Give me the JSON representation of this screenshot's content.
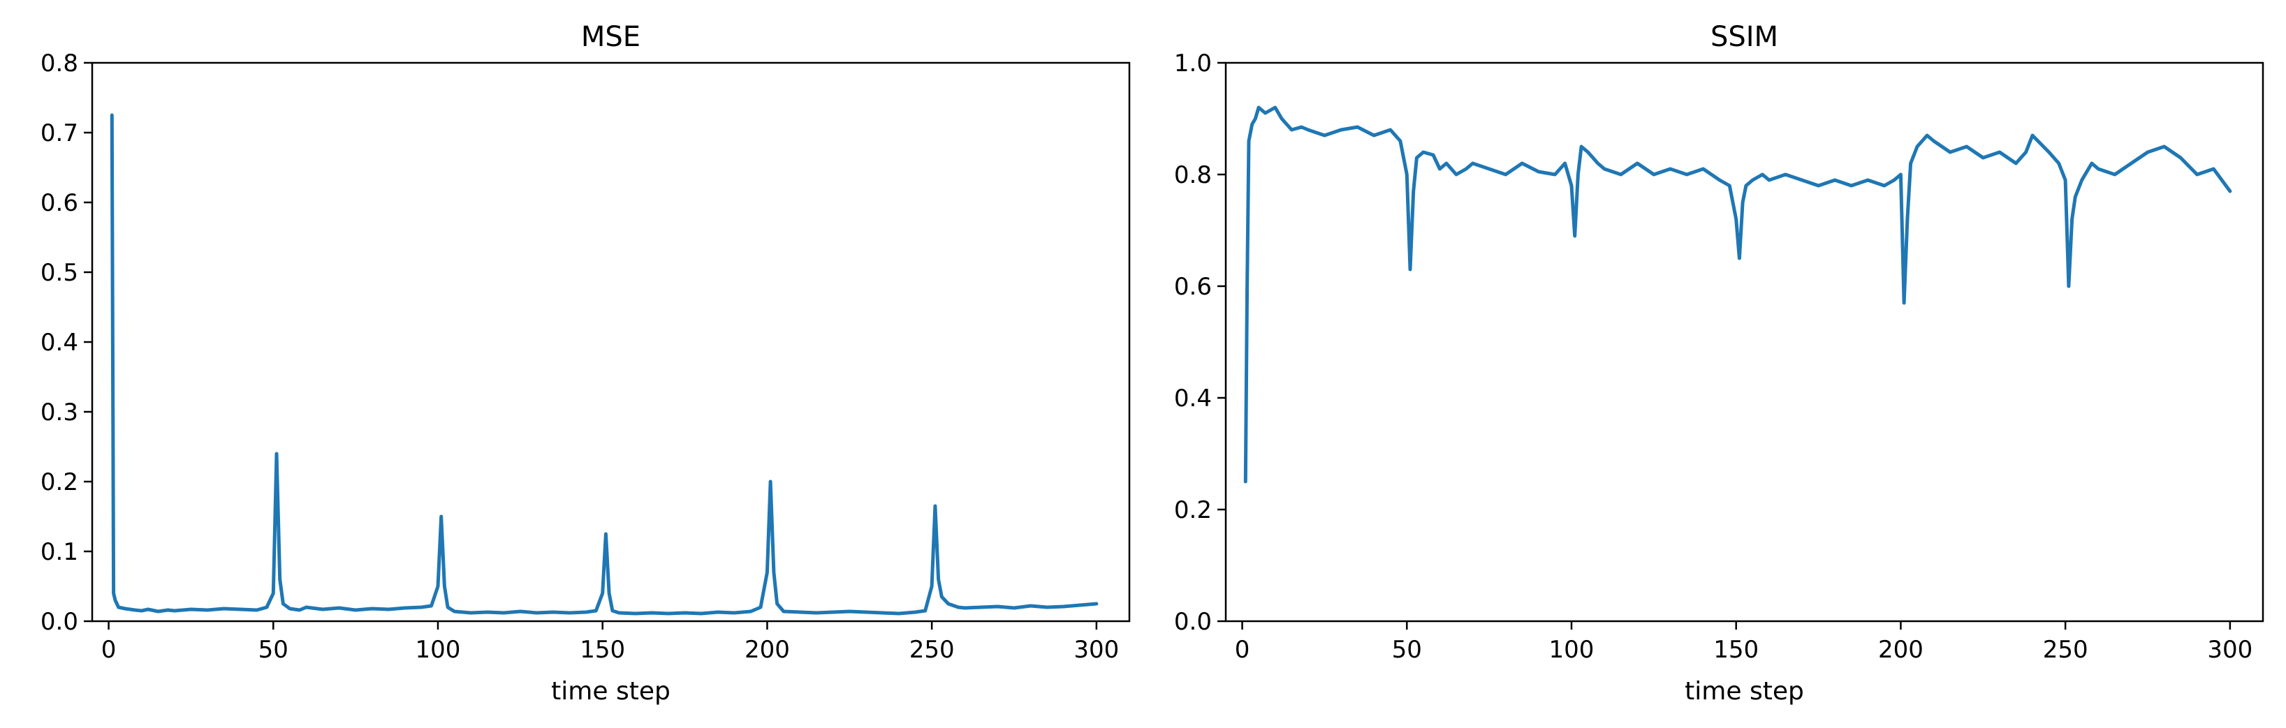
{
  "chart_data": [
    {
      "type": "line",
      "title": "MSE",
      "xlabel": "time step",
      "ylabel": "",
      "xlim": [
        -5,
        310
      ],
      "ylim": [
        0,
        0.8
      ],
      "xticks": [
        0,
        50,
        100,
        150,
        200,
        250,
        300
      ],
      "yticks": [
        0.0,
        0.1,
        0.2,
        0.3,
        0.4,
        0.5,
        0.6,
        0.7,
        0.8
      ],
      "xtick_labels": [
        "0",
        "50",
        "100",
        "150",
        "200",
        "250",
        "300"
      ],
      "ytick_labels": [
        "0.0",
        "0.1",
        "0.2",
        "0.3",
        "0.4",
        "0.5",
        "0.6",
        "0.7",
        "0.8"
      ],
      "grid": false,
      "color": "#1f77b4",
      "series": [
        {
          "x": [
            1,
            1.5,
            2,
            3,
            5,
            8,
            10,
            12,
            15,
            18,
            20,
            25,
            30,
            35,
            40,
            45,
            48,
            50,
            51,
            52,
            53,
            55,
            58,
            60,
            65,
            70,
            75,
            80,
            85,
            90,
            95,
            98,
            100,
            101,
            102,
            103,
            105,
            110,
            115,
            120,
            125,
            130,
            135,
            140,
            145,
            148,
            150,
            151,
            152,
            153,
            155,
            160,
            165,
            170,
            175,
            180,
            185,
            190,
            195,
            198,
            200,
            201,
            202,
            203,
            205,
            210,
            215,
            220,
            225,
            230,
            235,
            240,
            245,
            248,
            250,
            251,
            252,
            253,
            255,
            258,
            260,
            265,
            270,
            275,
            280,
            285,
            290,
            295,
            300
          ],
          "y": [
            0.725,
            0.04,
            0.03,
            0.02,
            0.018,
            0.016,
            0.015,
            0.017,
            0.014,
            0.016,
            0.015,
            0.017,
            0.016,
            0.018,
            0.017,
            0.016,
            0.02,
            0.04,
            0.24,
            0.06,
            0.025,
            0.018,
            0.016,
            0.02,
            0.017,
            0.019,
            0.016,
            0.018,
            0.017,
            0.019,
            0.02,
            0.022,
            0.05,
            0.15,
            0.05,
            0.02,
            0.014,
            0.012,
            0.013,
            0.012,
            0.014,
            0.012,
            0.013,
            0.012,
            0.013,
            0.015,
            0.04,
            0.125,
            0.04,
            0.015,
            0.012,
            0.011,
            0.012,
            0.011,
            0.012,
            0.011,
            0.013,
            0.012,
            0.014,
            0.02,
            0.07,
            0.2,
            0.07,
            0.025,
            0.014,
            0.013,
            0.012,
            0.013,
            0.014,
            0.013,
            0.012,
            0.011,
            0.013,
            0.015,
            0.05,
            0.165,
            0.06,
            0.035,
            0.025,
            0.02,
            0.019,
            0.02,
            0.021,
            0.019,
            0.022,
            0.02,
            0.021,
            0.023,
            0.025
          ]
        }
      ]
    },
    {
      "type": "line",
      "title": "SSIM",
      "xlabel": "time step",
      "ylabel": "",
      "xlim": [
        -5,
        310
      ],
      "ylim": [
        0,
        1.0
      ],
      "xticks": [
        0,
        50,
        100,
        150,
        200,
        250,
        300
      ],
      "yticks": [
        0.0,
        0.2,
        0.4,
        0.6,
        0.8,
        1.0
      ],
      "xtick_labels": [
        "0",
        "50",
        "100",
        "150",
        "200",
        "250",
        "300"
      ],
      "ytick_labels": [
        "0.0",
        "0.2",
        "0.4",
        "0.6",
        "0.8",
        "1.0"
      ],
      "grid": false,
      "color": "#1f77b4",
      "series": [
        {
          "x": [
            1,
            1.5,
            2,
            3,
            4,
            5,
            7,
            10,
            12,
            15,
            18,
            20,
            25,
            30,
            35,
            40,
            45,
            48,
            50,
            51,
            52,
            53,
            55,
            58,
            60,
            62,
            65,
            68,
            70,
            75,
            80,
            85,
            90,
            95,
            98,
            100,
            101,
            102,
            103,
            105,
            108,
            110,
            115,
            120,
            125,
            130,
            135,
            140,
            145,
            148,
            150,
            151,
            152,
            153,
            155,
            158,
            160,
            165,
            170,
            175,
            180,
            185,
            190,
            195,
            198,
            200,
            201,
            202,
            203,
            205,
            208,
            210,
            215,
            220,
            225,
            230,
            235,
            238,
            240,
            245,
            248,
            250,
            251,
            252,
            253,
            255,
            258,
            260,
            265,
            270,
            275,
            280,
            285,
            290,
            295,
            300
          ],
          "y": [
            0.25,
            0.6,
            0.86,
            0.89,
            0.9,
            0.92,
            0.91,
            0.92,
            0.9,
            0.88,
            0.885,
            0.88,
            0.87,
            0.88,
            0.885,
            0.87,
            0.88,
            0.86,
            0.8,
            0.63,
            0.77,
            0.83,
            0.84,
            0.835,
            0.81,
            0.82,
            0.8,
            0.81,
            0.82,
            0.81,
            0.8,
            0.82,
            0.805,
            0.8,
            0.82,
            0.78,
            0.69,
            0.8,
            0.85,
            0.84,
            0.82,
            0.81,
            0.8,
            0.82,
            0.8,
            0.81,
            0.8,
            0.81,
            0.79,
            0.78,
            0.72,
            0.65,
            0.75,
            0.78,
            0.79,
            0.8,
            0.79,
            0.8,
            0.79,
            0.78,
            0.79,
            0.78,
            0.79,
            0.78,
            0.79,
            0.8,
            0.57,
            0.72,
            0.82,
            0.85,
            0.87,
            0.86,
            0.84,
            0.85,
            0.83,
            0.84,
            0.82,
            0.84,
            0.87,
            0.84,
            0.82,
            0.79,
            0.6,
            0.72,
            0.76,
            0.79,
            0.82,
            0.81,
            0.8,
            0.82,
            0.84,
            0.85,
            0.83,
            0.8,
            0.81,
            0.77
          ]
        }
      ]
    }
  ]
}
